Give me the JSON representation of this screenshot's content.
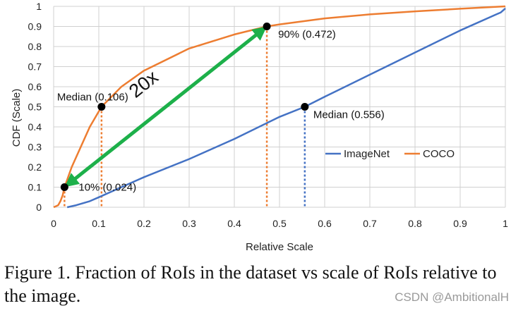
{
  "chart_data": {
    "type": "line",
    "xlabel": "Relative Scale",
    "ylabel": "CDF (Scale)",
    "xlim": [
      0,
      1
    ],
    "ylim": [
      0,
      1
    ],
    "xticks": [
      "0",
      "0.1",
      "0.2",
      "0.3",
      "0.4",
      "0.5",
      "0.6",
      "0.7",
      "0.8",
      "0.9",
      "1"
    ],
    "yticks": [
      "0",
      "0.1",
      "0.2",
      "0.3",
      "0.4",
      "0.5",
      "0.6",
      "0.7",
      "0.8",
      "0.9",
      "1"
    ],
    "grid": true,
    "legend_position": "right",
    "series": [
      {
        "name": "ImageNet",
        "color": "#4472c4",
        "x": [
          0.03,
          0.05,
          0.08,
          0.1,
          0.15,
          0.2,
          0.3,
          0.4,
          0.5,
          0.556,
          0.6,
          0.7,
          0.8,
          0.9,
          0.98,
          0.99,
          1.0
        ],
        "y": [
          0.0,
          0.01,
          0.03,
          0.05,
          0.1,
          0.15,
          0.24,
          0.34,
          0.45,
          0.5,
          0.55,
          0.66,
          0.77,
          0.88,
          0.96,
          0.97,
          0.99
        ]
      },
      {
        "name": "COCO",
        "color": "#ed7d31",
        "x": [
          0.0,
          0.01,
          0.015,
          0.02,
          0.024,
          0.04,
          0.06,
          0.08,
          0.106,
          0.15,
          0.2,
          0.3,
          0.4,
          0.472,
          0.5,
          0.6,
          0.7,
          0.8,
          0.9,
          1.0
        ],
        "y": [
          0.0,
          0.01,
          0.03,
          0.06,
          0.1,
          0.2,
          0.3,
          0.4,
          0.5,
          0.6,
          0.68,
          0.79,
          0.86,
          0.9,
          0.91,
          0.94,
          0.96,
          0.975,
          0.988,
          1.0
        ]
      }
    ],
    "markers": [
      {
        "x": 0.024,
        "y": 0.1,
        "label": "10% (0.024)",
        "color": "#ed7d31"
      },
      {
        "x": 0.106,
        "y": 0.5,
        "label": "Median (0.106)",
        "color": "#ed7d31"
      },
      {
        "x": 0.472,
        "y": 0.9,
        "label": "90% (0.472)",
        "color": "#ed7d31"
      },
      {
        "x": 0.556,
        "y": 0.5,
        "label": "Median (0.556)",
        "color": "#4472c4"
      }
    ],
    "arrow": {
      "from": [
        0.024,
        0.1
      ],
      "to": [
        0.472,
        0.9
      ],
      "label": "20x",
      "color": "#1db04a"
    }
  },
  "caption": "Figure 1. Fraction of RoIs in the dataset vs scale of RoIs relative to the image.",
  "watermark": "CSDN @AmbitionalH"
}
